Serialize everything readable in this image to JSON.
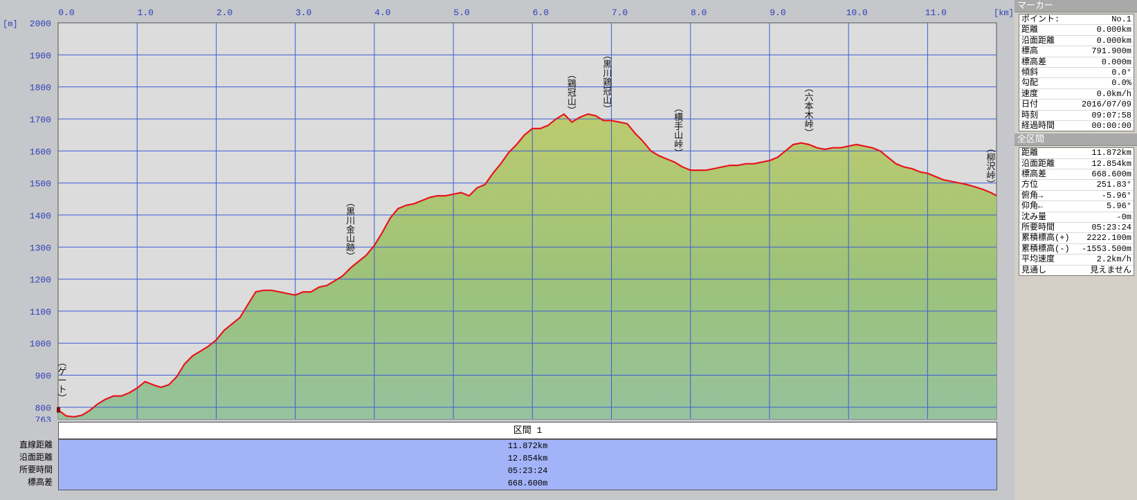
{
  "chart_data": {
    "type": "area",
    "x_unit": "[km]",
    "y_unit": "[m]",
    "xlim": [
      0,
      11.872
    ],
    "ylim": [
      763,
      2000
    ],
    "x_ticks": [
      "0.0",
      "1.0",
      "2.0",
      "3.0",
      "4.0",
      "5.0",
      "6.0",
      "7.0",
      "8.0",
      "9.0",
      "10.0",
      "11.0"
    ],
    "y_ticks": [
      "2000",
      "1900",
      "1800",
      "1700",
      "1600",
      "1500",
      "1400",
      "1300",
      "1200",
      "1100",
      "1000",
      "900",
      "800",
      "763"
    ],
    "series": [
      {
        "color": "#e8141c",
        "x": [
          0,
          0.1,
          0.2,
          0.3,
          0.4,
          0.5,
          0.6,
          0.7,
          0.8,
          0.9,
          1.0,
          1.1,
          1.2,
          1.3,
          1.4,
          1.5,
          1.6,
          1.7,
          1.8,
          1.9,
          2.0,
          2.1,
          2.2,
          2.3,
          2.4,
          2.5,
          2.6,
          2.7,
          2.8,
          2.9,
          3.0,
          3.1,
          3.2,
          3.3,
          3.4,
          3.5,
          3.6,
          3.7,
          3.8,
          3.9,
          4.0,
          4.1,
          4.2,
          4.3,
          4.4,
          4.5,
          4.6,
          4.7,
          4.8,
          4.9,
          5.0,
          5.1,
          5.2,
          5.3,
          5.4,
          5.5,
          5.6,
          5.7,
          5.8,
          5.9,
          6.0,
          6.1,
          6.2,
          6.3,
          6.4,
          6.5,
          6.6,
          6.7,
          6.8,
          6.9,
          7.0,
          7.1,
          7.2,
          7.3,
          7.4,
          7.5,
          7.6,
          7.7,
          7.8,
          7.9,
          8.0,
          8.1,
          8.2,
          8.3,
          8.4,
          8.5,
          8.6,
          8.7,
          8.8,
          8.9,
          9.0,
          9.1,
          9.2,
          9.3,
          9.4,
          9.5,
          9.6,
          9.7,
          9.8,
          9.9,
          10.0,
          10.1,
          10.2,
          10.3,
          10.4,
          10.5,
          10.6,
          10.7,
          10.8,
          10.9,
          11.0,
          11.1,
          11.2,
          11.3,
          11.4,
          11.5,
          11.6,
          11.7,
          11.8,
          11.872
        ],
        "y": [
          792,
          773,
          770,
          775,
          790,
          810,
          825,
          835,
          835,
          845,
          860,
          880,
          870,
          862,
          870,
          895,
          935,
          960,
          975,
          990,
          1010,
          1040,
          1060,
          1080,
          1120,
          1160,
          1165,
          1165,
          1160,
          1155,
          1150,
          1160,
          1160,
          1175,
          1180,
          1195,
          1210,
          1235,
          1255,
          1275,
          1305,
          1345,
          1390,
          1420,
          1430,
          1435,
          1445,
          1455,
          1460,
          1460,
          1465,
          1470,
          1460,
          1485,
          1495,
          1530,
          1560,
          1595,
          1620,
          1650,
          1670,
          1670,
          1680,
          1700,
          1715,
          1690,
          1705,
          1715,
          1710,
          1695,
          1695,
          1690,
          1685,
          1655,
          1630,
          1600,
          1585,
          1575,
          1565,
          1550,
          1540,
          1540,
          1540,
          1545,
          1550,
          1555,
          1555,
          1560,
          1560,
          1565,
          1570,
          1580,
          1600,
          1620,
          1625,
          1620,
          1610,
          1605,
          1610,
          1610,
          1615,
          1620,
          1615,
          1610,
          1600,
          1580,
          1560,
          1550,
          1545,
          1535,
          1530,
          1520,
          1510,
          1505,
          1500,
          1495,
          1488,
          1480,
          1470,
          1460
        ]
      }
    ],
    "annotations": [
      {
        "x": 0.0,
        "label": "ゲート"
      },
      {
        "x": 3.7,
        "label": "黒川金山跡"
      },
      {
        "x": 6.5,
        "label": "鶏冠山"
      },
      {
        "x": 6.95,
        "label": "黒川鶏冠山"
      },
      {
        "x": 7.85,
        "label": "横手山峠"
      },
      {
        "x": 9.5,
        "label": "六本木峠"
      },
      {
        "x": 11.872,
        "label": "柳沢峠"
      }
    ]
  },
  "marker_panel": {
    "title": "マーカー",
    "rows": [
      {
        "label": "ポイント:",
        "value": "No.1"
      },
      {
        "label": "距離",
        "value": "0.000km"
      },
      {
        "label": "沿面距離",
        "value": "0.000km"
      },
      {
        "label": "標高",
        "value": "791.900m"
      },
      {
        "label": "標高差",
        "value": "0.000m"
      },
      {
        "label": "傾斜",
        "value": "0.0°"
      },
      {
        "label": "勾配",
        "value": "0.0%"
      },
      {
        "label": "速度",
        "value": "0.0km/h"
      },
      {
        "label": "日付",
        "value": "2016/07/09"
      },
      {
        "label": "時刻",
        "value": "09:07:58"
      },
      {
        "label": "経過時間",
        "value": "00:00:00"
      }
    ]
  },
  "section_panel": {
    "title": "全区間",
    "rows": [
      {
        "label": "距離",
        "value": "11.872km"
      },
      {
        "label": "沿面距離",
        "value": "12.854km"
      },
      {
        "label": "標高差",
        "value": "668.600m"
      },
      {
        "label": "方位",
        "value": "251.83°"
      },
      {
        "label": "俯角→",
        "value": "-5.96°"
      },
      {
        "label": "仰角←",
        "value": "5.96°"
      },
      {
        "label": "沈み量",
        "value": "-0m"
      },
      {
        "label": "所要時間",
        "value": "05:23:24"
      },
      {
        "label": "累積標高(+)",
        "value": "2222.100m"
      },
      {
        "label": "累積標高(-)",
        "value": "-1553.500m"
      },
      {
        "label": "平均速度",
        "value": "2.2km/h"
      },
      {
        "label": "見通し",
        "value": "見えません"
      }
    ]
  },
  "section_table": {
    "header": "区間 1",
    "labels": [
      "直線距離",
      "沿面距離",
      "所要時間",
      "標高差"
    ],
    "values": [
      "11.872km",
      "12.854km",
      "05:23:24",
      "668.600m"
    ]
  }
}
